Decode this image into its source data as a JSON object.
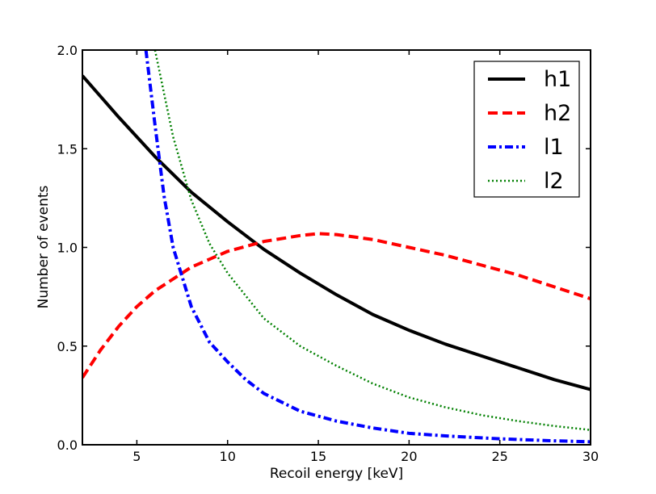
{
  "chart_data": {
    "type": "line",
    "title": "",
    "xlabel": "Recoil energy [keV]",
    "ylabel": "Number of events",
    "xlim": [
      2,
      30
    ],
    "ylim": [
      0,
      2.0
    ],
    "xticks": [
      5,
      10,
      15,
      20,
      25,
      30
    ],
    "xtick_labels": [
      "5",
      "10",
      "15",
      "20",
      "25",
      "30"
    ],
    "yticks": [
      0,
      0.5,
      1.0,
      1.5,
      2.0
    ],
    "ytick_labels": [
      "0.0",
      "0.5",
      "1.0",
      "1.5",
      "2.0"
    ],
    "grid": false,
    "legend_position": "top-right",
    "series": [
      {
        "name": "h1",
        "color": "#000000",
        "style": "solid",
        "x": [
          2,
          4,
          6,
          8,
          10,
          12,
          14,
          16,
          18,
          20,
          22,
          24,
          26,
          28,
          30
        ],
        "y": [
          1.87,
          1.66,
          1.46,
          1.28,
          1.13,
          0.99,
          0.87,
          0.76,
          0.66,
          0.58,
          0.51,
          0.45,
          0.39,
          0.33,
          0.28
        ]
      },
      {
        "name": "h2",
        "color": "#ff0000",
        "style": "dashed",
        "x": [
          2,
          3,
          4,
          5,
          6,
          7,
          8,
          9,
          10,
          12,
          14,
          15,
          16,
          18,
          20,
          22,
          24,
          26,
          28,
          30
        ],
        "y": [
          0.34,
          0.48,
          0.6,
          0.7,
          0.78,
          0.84,
          0.9,
          0.94,
          0.98,
          1.03,
          1.06,
          1.07,
          1.065,
          1.04,
          1.0,
          0.96,
          0.91,
          0.86,
          0.8,
          0.74
        ]
      },
      {
        "name": "l1",
        "color": "#0000ff",
        "style": "dashdot",
        "x": [
          5.5,
          6,
          6.5,
          7,
          8,
          9,
          10,
          11,
          12,
          14,
          16,
          18,
          20,
          22,
          25,
          28,
          30
        ],
        "y": [
          2.0,
          1.62,
          1.26,
          1.0,
          0.7,
          0.52,
          0.42,
          0.33,
          0.26,
          0.17,
          0.12,
          0.085,
          0.058,
          0.045,
          0.03,
          0.02,
          0.015
        ]
      },
      {
        "name": "l2",
        "color": "#008000",
        "style": "dotted",
        "x": [
          6,
          6.5,
          7,
          8,
          9,
          10,
          12,
          14,
          16,
          18,
          20,
          22,
          24,
          26,
          28,
          30
        ],
        "y": [
          2.0,
          1.78,
          1.56,
          1.24,
          1.02,
          0.87,
          0.64,
          0.5,
          0.4,
          0.31,
          0.24,
          0.19,
          0.15,
          0.12,
          0.095,
          0.075
        ]
      }
    ]
  }
}
